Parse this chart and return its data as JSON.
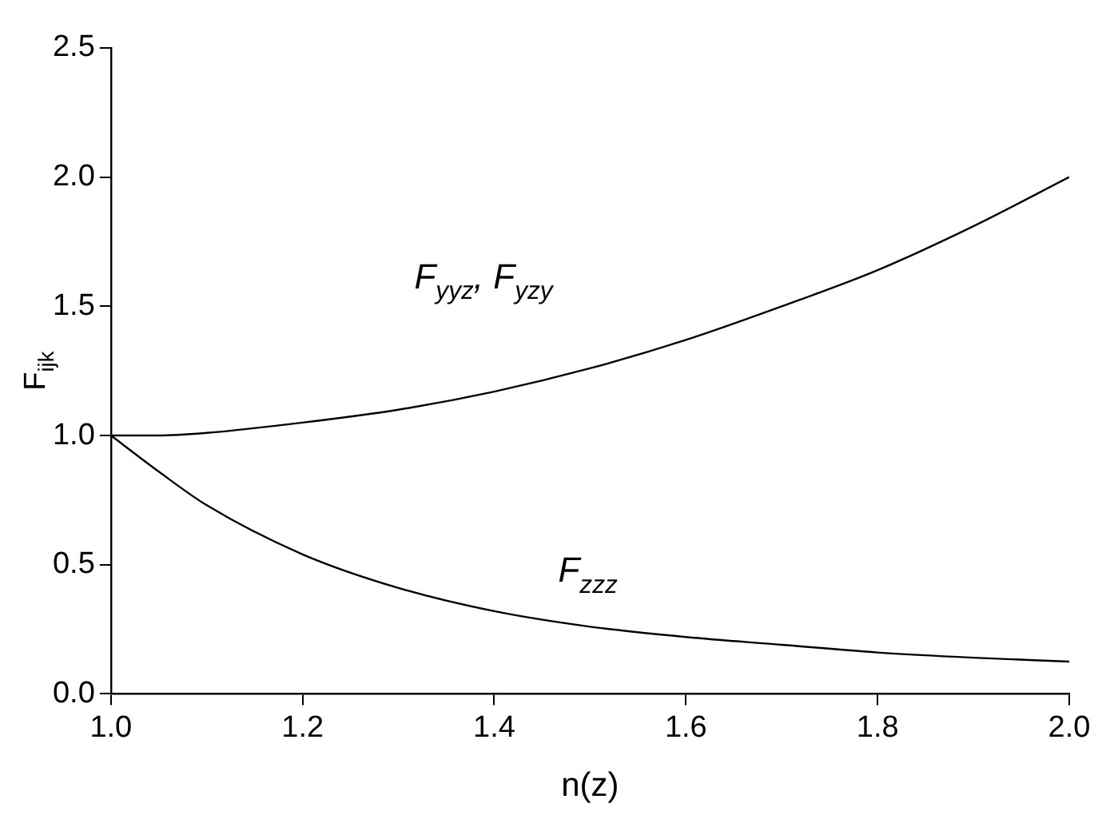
{
  "chart_data": {
    "type": "line",
    "xlabel": "n(z)",
    "ylabel": "F$_{ijk}$",
    "x": [
      1.0,
      1.05,
      1.1,
      1.2,
      1.3,
      1.4,
      1.5,
      1.6,
      1.7,
      1.8,
      1.9,
      2.0
    ],
    "series": [
      {
        "name": "F$_{yyz}$, F$_{yzy}$",
        "color": "#000000",
        "values": [
          1.0,
          1.0,
          1.01,
          1.05,
          1.1,
          1.17,
          1.26,
          1.37,
          1.5,
          1.64,
          1.81,
          2.0
        ]
      },
      {
        "name": "F$_{zzz}$",
        "color": "#000000",
        "values": [
          1.0,
          0.86,
          0.73,
          0.54,
          0.41,
          0.32,
          0.26,
          0.22,
          0.19,
          0.16,
          0.14,
          0.125
        ]
      }
    ],
    "xlim": [
      1.0,
      2.0
    ],
    "xticks": [
      {
        "value": 1.0,
        "label": "1.0"
      },
      {
        "value": 1.2,
        "label": "1.2"
      },
      {
        "value": 1.4,
        "label": "1.4"
      },
      {
        "value": 1.6,
        "label": "1.6"
      },
      {
        "value": 1.8,
        "label": "1.8"
      },
      {
        "value": 2.0,
        "label": "2.0"
      }
    ],
    "ylim": [
      0.0,
      2.5
    ],
    "yticks": [
      {
        "value": 0.0,
        "label": "0.0"
      },
      {
        "value": 0.5,
        "label": "0.5"
      },
      {
        "value": 1.0,
        "label": "1.0"
      },
      {
        "value": 1.5,
        "label": "1.5"
      },
      {
        "value": 2.0,
        "label": "2.0"
      },
      {
        "value": 2.5,
        "label": "2.5"
      }
    ],
    "grid": false,
    "legend": false,
    "marker": "none",
    "line_style": "solid"
  }
}
